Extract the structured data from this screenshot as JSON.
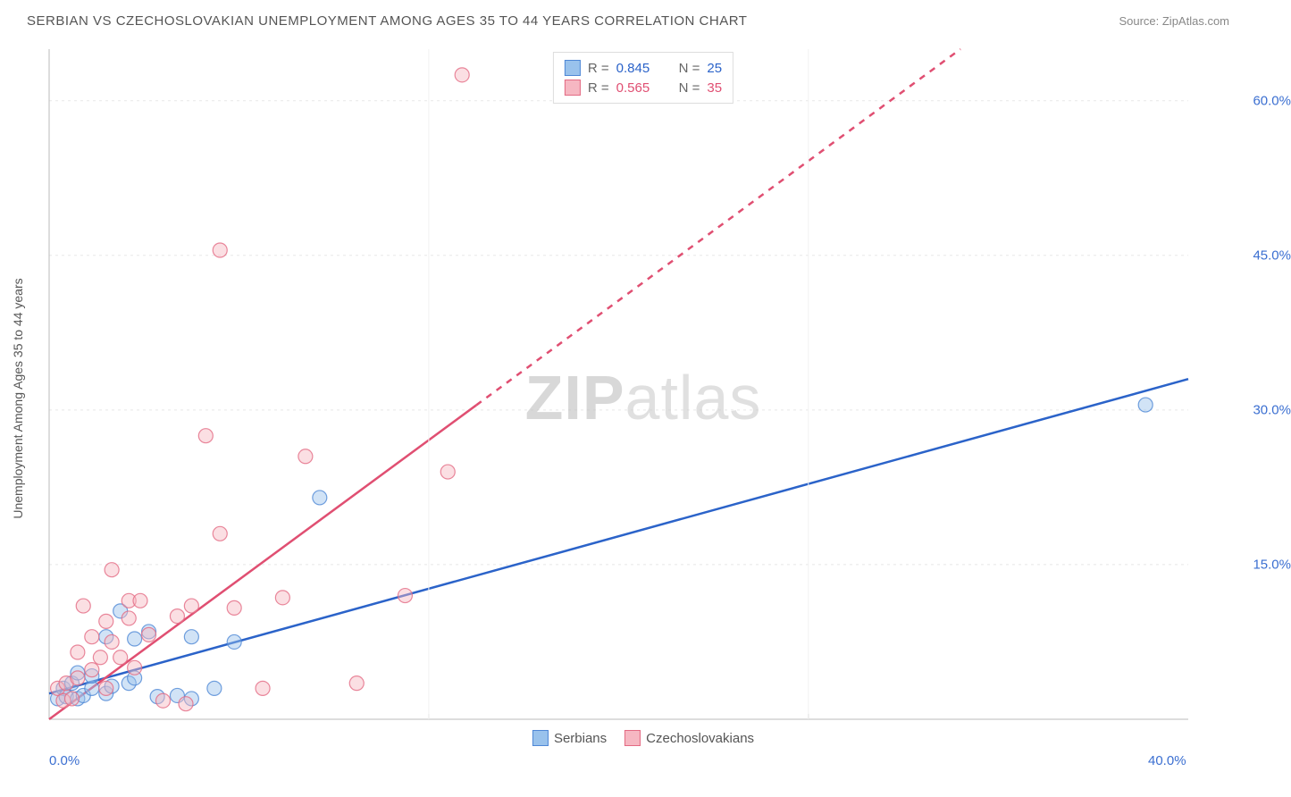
{
  "title": "SERBIAN VS CZECHOSLOVAKIAN UNEMPLOYMENT AMONG AGES 35 TO 44 YEARS CORRELATION CHART",
  "source": "Source: ZipAtlas.com",
  "y_axis_label": "Unemployment Among Ages 35 to 44 years",
  "watermark_a": "ZIP",
  "watermark_b": "atlas",
  "chart": {
    "type": "scatter-correlation",
    "xlim": [
      0,
      40
    ],
    "ylim": [
      0,
      65
    ],
    "x_ticks": [
      {
        "v": 0,
        "label": "0.0%"
      },
      {
        "v": 40,
        "label": "40.0%"
      }
    ],
    "y_ticks": [
      {
        "v": 15,
        "label": "15.0%"
      },
      {
        "v": 30,
        "label": "30.0%"
      },
      {
        "v": 45,
        "label": "45.0%"
      },
      {
        "v": 60,
        "label": "60.0%"
      }
    ],
    "background_color": "#ffffff",
    "grid_color": "#e8e8e8",
    "axis_color": "#bbbbbb",
    "tick_label_color": "#3b6fd1",
    "point_radius": 8,
    "point_opacity": 0.45,
    "series": [
      {
        "key": "serbians",
        "name": "Serbians",
        "fill": "#99c2ec",
        "stroke": "#4f88d6",
        "line_color": "#2b63c9",
        "line_width": 2.5,
        "line_dash_after_x": null,
        "fit": {
          "x0": 0,
          "y0": 2.5,
          "x1": 40,
          "y1": 33
        },
        "r": "0.845",
        "n": "25",
        "points": [
          [
            0.3,
            2.0
          ],
          [
            0.5,
            3.0
          ],
          [
            0.6,
            2.2
          ],
          [
            0.8,
            3.5
          ],
          [
            1.0,
            2.0
          ],
          [
            1.0,
            4.5
          ],
          [
            1.2,
            2.3
          ],
          [
            1.5,
            3.0
          ],
          [
            1.5,
            4.2
          ],
          [
            2.0,
            2.5
          ],
          [
            2.0,
            8.0
          ],
          [
            2.2,
            3.2
          ],
          [
            2.5,
            10.5
          ],
          [
            2.8,
            3.5
          ],
          [
            3.0,
            7.8
          ],
          [
            3.0,
            4.0
          ],
          [
            3.5,
            8.5
          ],
          [
            3.8,
            2.2
          ],
          [
            4.5,
            2.3
          ],
          [
            5.0,
            2.0
          ],
          [
            5.0,
            8.0
          ],
          [
            5.8,
            3.0
          ],
          [
            6.5,
            7.5
          ],
          [
            9.5,
            21.5
          ],
          [
            38.5,
            30.5
          ]
        ]
      },
      {
        "key": "czechoslovakians",
        "name": "Czechoslovakians",
        "fill": "#f6b7c2",
        "stroke": "#e36a83",
        "line_color": "#e04f72",
        "line_width": 2.5,
        "line_dash_after_x": 15,
        "fit": {
          "x0": 0,
          "y0": 0,
          "x1": 32,
          "y1": 65
        },
        "r": "0.565",
        "n": "35",
        "points": [
          [
            0.3,
            3.0
          ],
          [
            0.5,
            1.8
          ],
          [
            0.6,
            3.5
          ],
          [
            0.8,
            2.0
          ],
          [
            1.0,
            4.0
          ],
          [
            1.0,
            6.5
          ],
          [
            1.2,
            11.0
          ],
          [
            1.5,
            4.8
          ],
          [
            1.5,
            8.0
          ],
          [
            1.8,
            6.0
          ],
          [
            2.0,
            3.0
          ],
          [
            2.0,
            9.5
          ],
          [
            2.2,
            14.5
          ],
          [
            2.2,
            7.5
          ],
          [
            2.5,
            6.0
          ],
          [
            2.8,
            9.8
          ],
          [
            2.8,
            11.5
          ],
          [
            3.0,
            5.0
          ],
          [
            3.2,
            11.5
          ],
          [
            3.5,
            8.2
          ],
          [
            4.0,
            1.8
          ],
          [
            4.5,
            10.0
          ],
          [
            4.8,
            1.5
          ],
          [
            5.0,
            11.0
          ],
          [
            5.5,
            27.5
          ],
          [
            6.0,
            18.0
          ],
          [
            6.0,
            45.5
          ],
          [
            6.5,
            10.8
          ],
          [
            7.5,
            3.0
          ],
          [
            8.2,
            11.8
          ],
          [
            9.0,
            25.5
          ],
          [
            10.8,
            3.5
          ],
          [
            12.5,
            12.0
          ],
          [
            14.0,
            24.0
          ],
          [
            14.5,
            62.5
          ]
        ]
      }
    ]
  }
}
